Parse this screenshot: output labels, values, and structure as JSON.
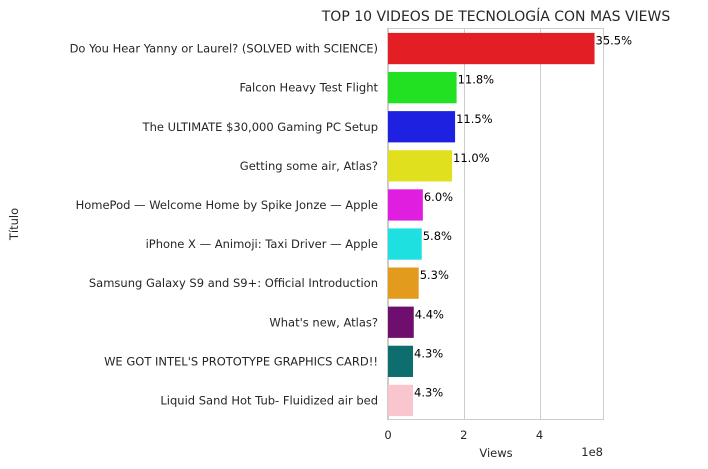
{
  "chart_data": {
    "type": "bar",
    "orientation": "horizontal",
    "title": "TOP 10 VIDEOS DE TECNOLOGÍA CON MAS VIEWS",
    "xlabel": "Views",
    "ylabel": "Título",
    "x_offset_text": "1e8",
    "xlim": [
      0,
      5.7
    ],
    "xticks": [
      0,
      2,
      4
    ],
    "xtick_labels": [
      "0",
      "2",
      "4"
    ],
    "grid": true,
    "categories": [
      "Do You Hear Yanny or Laurel? (SOLVED with SCIENCE)",
      "Falcon Heavy Test Flight",
      "The ULTIMATE $30,000 Gaming PC Setup",
      "Getting some air, Atlas?",
      "HomePod — Welcome Home by Spike Jonze — Apple",
      "iPhone X — Animoji: Taxi Driver — Apple",
      "Samsung Galaxy S9 and S9+: Official Introduction",
      "What's new, Atlas?",
      "WE GOT INTEL'S PROTOTYPE GRAPHICS CARD!!",
      "Liquid Sand Hot Tub- Fluidized air bed"
    ],
    "values": [
      5.45,
      1.81,
      1.77,
      1.69,
      0.92,
      0.89,
      0.81,
      0.68,
      0.66,
      0.66
    ],
    "value_labels": [
      "35.5%",
      "11.8%",
      "11.5%",
      "11.0%",
      "6.0%",
      "5.8%",
      "5.3%",
      "4.4%",
      "4.3%",
      "4.3%"
    ],
    "colors": [
      "#e31e24",
      "#22e022",
      "#1e22e0",
      "#e0e01e",
      "#e01ee0",
      "#1ee0e0",
      "#e39b1e",
      "#6e0e6e",
      "#0e6e6e",
      "#f9c6d0"
    ]
  }
}
